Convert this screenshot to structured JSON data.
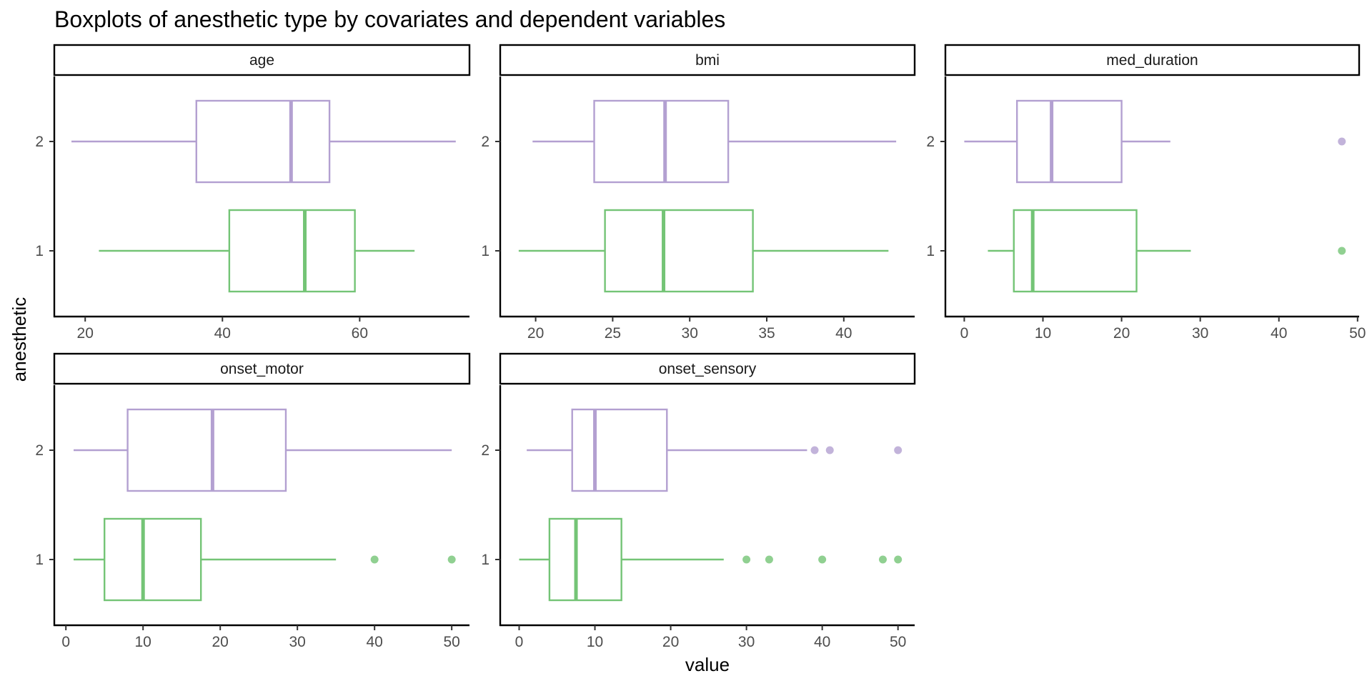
{
  "chart_data": {
    "type": "boxplot",
    "title": "Boxplots of anesthetic type by covariates and dependent variables",
    "xlabel": "value",
    "ylabel": "anesthetic",
    "categories": [
      "1",
      "2"
    ],
    "colors": {
      "1": "#74c476",
      "2": "#b3a0d1"
    },
    "grid": false,
    "facets": [
      {
        "name": "age",
        "xlim": [
          15.5,
          76
        ],
        "xticks": [
          20,
          40,
          60
        ],
        "boxes": [
          {
            "group": "1",
            "whisker_low": 22,
            "q1": 41,
            "median": 52,
            "q3": 59.3,
            "whisker_high": 68,
            "outliers": []
          },
          {
            "group": "2",
            "whisker_low": 18,
            "q1": 36.2,
            "median": 50,
            "q3": 55.6,
            "whisker_high": 74,
            "outliers": []
          }
        ]
      },
      {
        "name": "bmi",
        "xlim": [
          17.7,
          44.6
        ],
        "xticks": [
          20,
          25,
          30,
          35,
          40
        ],
        "boxes": [
          {
            "group": "1",
            "whisker_low": 18.9,
            "q1": 24.5,
            "median": 28.3,
            "q3": 34.1,
            "whisker_high": 42.9,
            "outliers": []
          },
          {
            "group": "2",
            "whisker_low": 19.8,
            "q1": 23.8,
            "median": 28.4,
            "q3": 32.5,
            "whisker_high": 43.4,
            "outliers": []
          }
        ]
      },
      {
        "name": "med_duration",
        "xlim": [
          -2.4,
          50.2
        ],
        "xticks": [
          0,
          10,
          20,
          30,
          40,
          50
        ],
        "boxes": [
          {
            "group": "1",
            "whisker_low": 3,
            "q1": 6.3,
            "median": 8.7,
            "q3": 21.9,
            "whisker_high": 28.8,
            "outliers": [
              48
            ]
          },
          {
            "group": "2",
            "whisker_low": 0,
            "q1": 6.7,
            "median": 11.1,
            "q3": 20,
            "whisker_high": 26.2,
            "outliers": [
              48
            ]
          }
        ]
      },
      {
        "name": "onset_motor",
        "xlim": [
          -1.5,
          52.3
        ],
        "xticks": [
          0,
          10,
          20,
          30,
          40,
          50
        ],
        "boxes": [
          {
            "group": "1",
            "whisker_low": 1,
            "q1": 5,
            "median": 10,
            "q3": 17.5,
            "whisker_high": 35,
            "outliers": [
              40,
              50
            ]
          },
          {
            "group": "2",
            "whisker_low": 1,
            "q1": 8,
            "median": 19,
            "q3": 28.5,
            "whisker_high": 50,
            "outliers": []
          }
        ]
      },
      {
        "name": "onset_sensory",
        "xlim": [
          -2.5,
          52.2
        ],
        "xticks": [
          0,
          10,
          20,
          30,
          40,
          50
        ],
        "boxes": [
          {
            "group": "1",
            "whisker_low": 0,
            "q1": 4,
            "median": 7.5,
            "q3": 13.5,
            "whisker_high": 27,
            "outliers": [
              30,
              33,
              40,
              48,
              50
            ]
          },
          {
            "group": "2",
            "whisker_low": 1,
            "q1": 7,
            "median": 10,
            "q3": 19.5,
            "whisker_high": 38,
            "outliers": [
              39,
              41,
              50
            ]
          }
        ]
      }
    ]
  }
}
